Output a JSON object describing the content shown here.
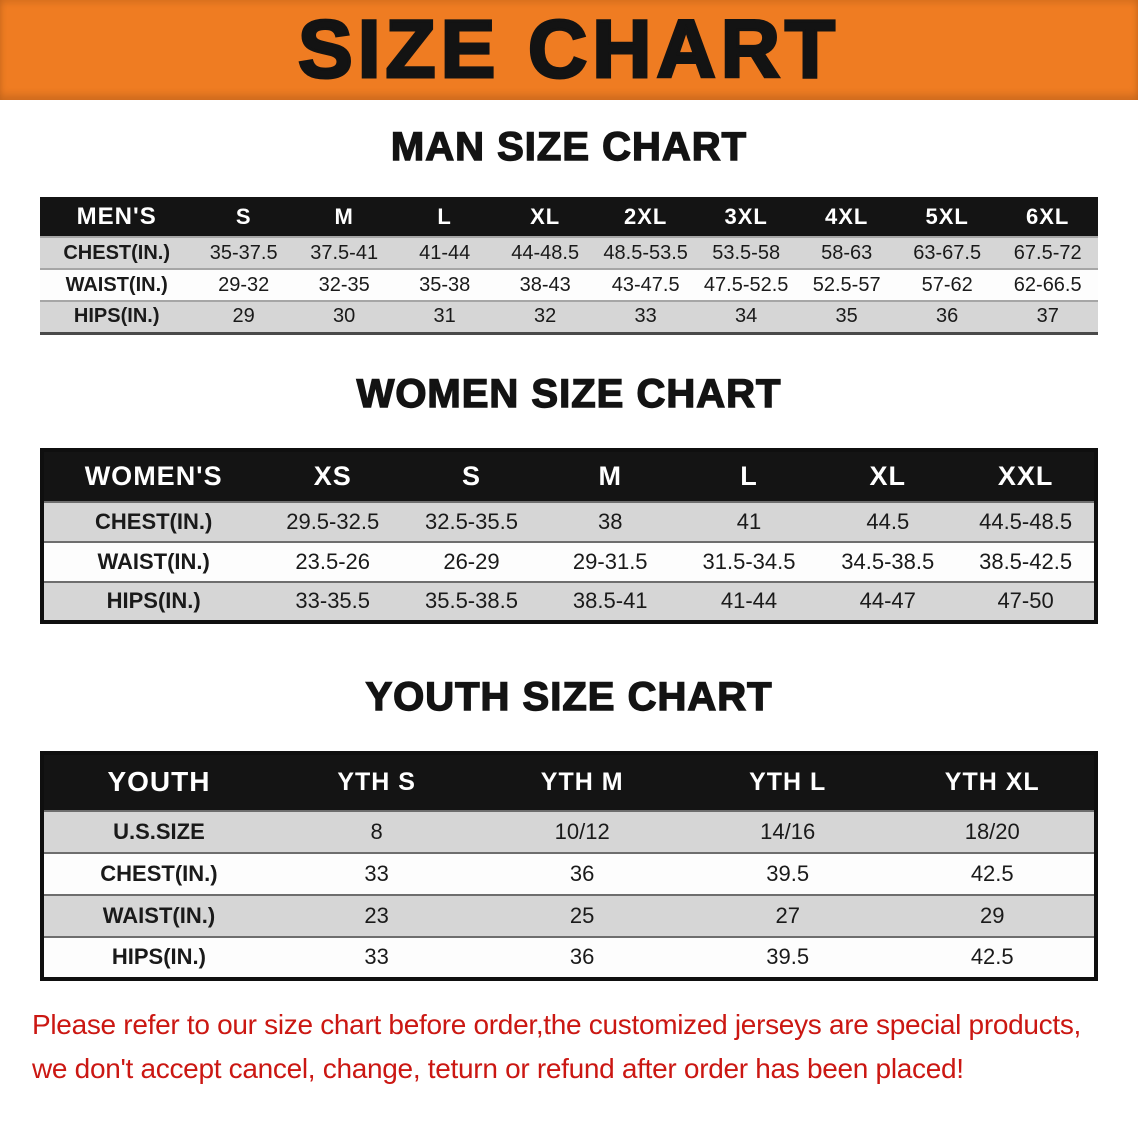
{
  "banner": {
    "title": "SIZE CHART"
  },
  "colors": {
    "banner_bg": "#ef7c22",
    "table_header_bg": "#141414",
    "row_gray": "#d6d6d6",
    "footer_red": "#cb1712"
  },
  "sections": [
    {
      "id": "men",
      "heading": "MAN SIZE CHART",
      "table": {
        "header": [
          "MEN'S",
          "S",
          "M",
          "L",
          "XL",
          "2XL",
          "3XL",
          "4XL",
          "5XL",
          "6XL"
        ],
        "rows": [
          {
            "label": "CHEST(IN.)",
            "values": [
              "35-37.5",
              "37.5-41",
              "41-44",
              "44-48.5",
              "48.5-53.5",
              "53.5-58",
              "58-63",
              "63-67.5",
              "67.5-72"
            ]
          },
          {
            "label": "WAIST(IN.)",
            "values": [
              "29-32",
              "32-35",
              "35-38",
              "38-43",
              "43-47.5",
              "47.5-52.5",
              "52.5-57",
              "57-62",
              "62-66.5"
            ]
          },
          {
            "label": "HIPS(IN.)",
            "values": [
              "29",
              "30",
              "31",
              "32",
              "33",
              "34",
              "35",
              "36",
              "37"
            ]
          }
        ]
      }
    },
    {
      "id": "women",
      "heading": "WOMEN SIZE CHART",
      "table": {
        "header": [
          "WOMEN'S",
          "XS",
          "S",
          "M",
          "L",
          "XL",
          "XXL"
        ],
        "rows": [
          {
            "label": "CHEST(IN.)",
            "values": [
              "29.5-32.5",
              "32.5-35.5",
              "38",
              "41",
              "44.5",
              "44.5-48.5"
            ]
          },
          {
            "label": "WAIST(IN.)",
            "values": [
              "23.5-26",
              "26-29",
              "29-31.5",
              "31.5-34.5",
              "34.5-38.5",
              "38.5-42.5"
            ]
          },
          {
            "label": "HIPS(IN.)",
            "values": [
              "33-35.5",
              "35.5-38.5",
              "38.5-41",
              "41-44",
              "44-47",
              "47-50"
            ]
          }
        ]
      }
    },
    {
      "id": "youth",
      "heading": "YOUTH SIZE CHART",
      "table": {
        "header": [
          "YOUTH",
          "YTH S",
          "YTH M",
          "YTH L",
          "YTH XL"
        ],
        "rows": [
          {
            "label": "U.S.SIZE",
            "values": [
              "8",
              "10/12",
              "14/16",
              "18/20"
            ]
          },
          {
            "label": "CHEST(IN.)",
            "values": [
              "33",
              "36",
              "39.5",
              "42.5"
            ]
          },
          {
            "label": "WAIST(IN.)",
            "values": [
              "23",
              "25",
              "27",
              "29"
            ]
          },
          {
            "label": "HIPS(IN.)",
            "values": [
              "33",
              "36",
              "39.5",
              "42.5"
            ]
          }
        ]
      }
    }
  ],
  "footer": {
    "lines": [
      "Please refer to our size chart before order,the customized jerseys are special products,",
      "we don't accept cancel, change, teturn or refund after order has been placed!"
    ]
  }
}
